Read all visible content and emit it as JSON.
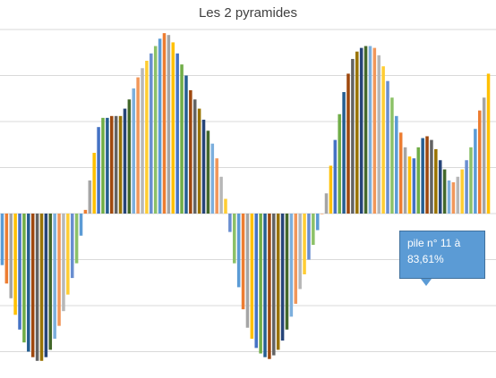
{
  "chart_data": {
    "type": "bar",
    "title": "Les 2 pyramides",
    "xlabel": "",
    "ylabel": "",
    "ylim": [
      -0.9,
      1.0
    ],
    "grid": true,
    "legend": "none",
    "palette": [
      "#5b9bd5",
      "#ed7d31",
      "#a5a5a5",
      "#ffc000",
      "#4472c4",
      "#70ad47",
      "#255e91",
      "#9e480e",
      "#636363",
      "#997300",
      "#264478",
      "#43682b",
      "#7cafdd",
      "#f1975a",
      "#b7b7b7",
      "#ffcd33",
      "#698ed0",
      "#8cc168"
    ],
    "values": [
      -0.28,
      -0.38,
      -0.46,
      -0.55,
      -0.63,
      -0.7,
      -0.75,
      -0.78,
      -0.8,
      -0.8,
      -0.78,
      -0.74,
      -0.68,
      -0.61,
      -0.53,
      -0.44,
      -0.35,
      -0.27,
      -0.12,
      0.02,
      0.18,
      0.33,
      0.47,
      0.52,
      0.52,
      0.53,
      0.53,
      0.53,
      0.57,
      0.62,
      0.68,
      0.74,
      0.79,
      0.83,
      0.87,
      0.91,
      0.95,
      0.98,
      0.97,
      0.93,
      0.87,
      0.81,
      0.75,
      0.67,
      0.62,
      0.57,
      0.51,
      0.45,
      0.38,
      0.3,
      0.2,
      0.08,
      -0.1,
      -0.27,
      -0.4,
      -0.52,
      -0.62,
      -0.68,
      -0.73,
      -0.76,
      -0.78,
      -0.79,
      -0.77,
      -0.74,
      -0.69,
      -0.63,
      -0.56,
      -0.49,
      -0.41,
      -0.33,
      -0.25,
      -0.17,
      -0.09,
      0.0,
      0.11,
      0.26,
      0.4,
      0.54,
      0.66,
      0.76,
      0.84,
      0.88,
      0.9,
      0.91,
      0.91,
      0.9,
      0.86,
      0.8,
      0.72,
      0.63,
      0.53,
      0.44,
      0.36,
      0.31,
      0.3,
      0.36,
      0.41,
      0.42,
      0.4,
      0.35,
      0.29,
      0.24,
      0.18,
      0.17,
      0.2,
      0.24,
      0.29,
      0.36,
      0.46,
      0.56,
      0.63,
      0.76
    ]
  },
  "callout": {
    "line1": "pile n° 11 à",
    "line2": "83,61%"
  }
}
